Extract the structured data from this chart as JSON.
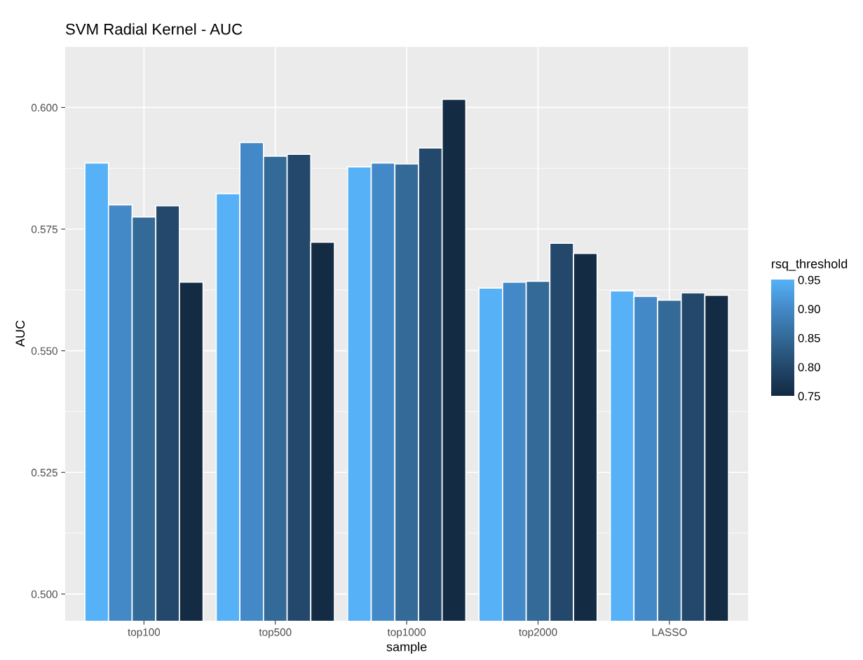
{
  "chart_data": {
    "type": "bar",
    "title": "SVM Radial Kernel - AUC",
    "xlabel": "sample",
    "ylabel": "AUC",
    "categories": [
      "top100",
      "top500",
      "top1000",
      "top2000",
      "LASSO"
    ],
    "series": [
      {
        "color": "#56b1f7",
        "values": [
          0.5886,
          0.5823,
          0.5878,
          0.5629,
          0.5623
        ]
      },
      {
        "color": "#4489c7",
        "values": [
          0.58,
          0.5928,
          0.5886,
          0.5641,
          0.5612
        ]
      },
      {
        "color": "#336a98",
        "values": [
          0.5775,
          0.59,
          0.5884,
          0.5643,
          0.5604
        ]
      },
      {
        "color": "#23486b",
        "values": [
          0.5798,
          0.5904,
          0.5917,
          0.5721,
          0.5619
        ]
      },
      {
        "color": "#132b43",
        "values": [
          0.5641,
          0.5723,
          0.6017,
          0.57,
          0.5614
        ]
      }
    ],
    "ylim": [
      0.4945,
      0.6126
    ],
    "yticks": [
      {
        "value": 0.5,
        "label": "0.500"
      },
      {
        "value": 0.525,
        "label": "0.525"
      },
      {
        "value": 0.55,
        "label": "0.550"
      },
      {
        "value": 0.575,
        "label": "0.575"
      },
      {
        "value": 0.6,
        "label": "0.600"
      }
    ],
    "clabel": "rsq_threshold",
    "clim": [
      0.75,
      0.95
    ],
    "cticks": [
      {
        "value": 0.75,
        "label": "0.75"
      },
      {
        "value": 0.8,
        "label": "0.80"
      },
      {
        "value": 0.85,
        "label": "0.85"
      },
      {
        "value": 0.9,
        "label": "0.90"
      },
      {
        "value": 0.95,
        "label": "0.95"
      }
    ],
    "grid": true
  }
}
